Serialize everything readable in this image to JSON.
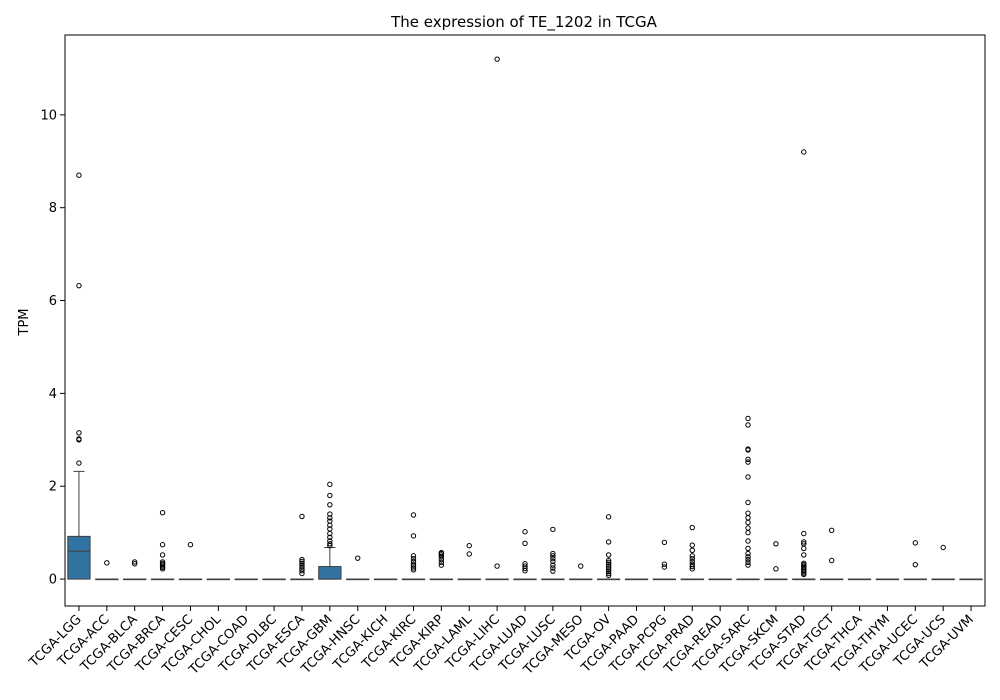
{
  "chart_data": {
    "type": "box",
    "title": "The expression of TE_1202 in TCGA",
    "xlabel": "",
    "ylabel": "TPM",
    "ylim": [
      -0.58,
      11.72
    ],
    "yticks": [
      0,
      2,
      4,
      6,
      8,
      10
    ],
    "grid": false,
    "box_color": "#3274a1",
    "categories": [
      "TCGA-LGG",
      "TCGA-ACC",
      "TCGA-BLCA",
      "TCGA-BRCA",
      "TCGA-CESC",
      "TCGA-CHOL",
      "TCGA-COAD",
      "TCGA-DLBC",
      "TCGA-ESCA",
      "TCGA-GBM",
      "TCGA-HNSC",
      "TCGA-KICH",
      "TCGA-KIRC",
      "TCGA-KIRP",
      "TCGA-LAML",
      "TCGA-LIHC",
      "TCGA-LUAD",
      "TCGA-LUSC",
      "TCGA-MESO",
      "TCGA-OV",
      "TCGA-PAAD",
      "TCGA-PCPG",
      "TCGA-PRAD",
      "TCGA-READ",
      "TCGA-SARC",
      "TCGA-SKCM",
      "TCGA-STAD",
      "TCGA-TGCT",
      "TCGA-THCA",
      "TCGA-THYM",
      "TCGA-UCEC",
      "TCGA-UCS",
      "TCGA-UVM"
    ],
    "boxes": [
      {
        "q1": 0,
        "median": 0.6,
        "q3": 0.92,
        "whisker_low": 0,
        "whisker_high": 2.32,
        "outliers": [
          2.5,
          3.0,
          3.02,
          3.15,
          6.32,
          8.7
        ]
      },
      {
        "q1": 0,
        "median": 0,
        "q3": 0,
        "whisker_low": 0,
        "whisker_high": 0,
        "outliers": [
          0.35
        ]
      },
      {
        "q1": 0,
        "median": 0,
        "q3": 0,
        "whisker_low": 0,
        "whisker_high": 0,
        "outliers": [
          0.33,
          0.37
        ]
      },
      {
        "q1": 0,
        "median": 0,
        "q3": 0,
        "whisker_low": 0,
        "whisker_high": 0,
        "outliers": [
          0.22,
          0.25,
          0.28,
          0.31,
          0.34,
          0.37,
          0.52,
          0.74,
          1.43
        ]
      },
      {
        "q1": 0,
        "median": 0,
        "q3": 0,
        "whisker_low": 0,
        "whisker_high": 0,
        "outliers": [
          0.74
        ]
      },
      {
        "q1": 0,
        "median": 0,
        "q3": 0,
        "whisker_low": 0,
        "whisker_high": 0,
        "outliers": []
      },
      {
        "q1": 0,
        "median": 0,
        "q3": 0,
        "whisker_low": 0,
        "whisker_high": 0,
        "outliers": []
      },
      {
        "q1": 0,
        "median": 0,
        "q3": 0,
        "whisker_low": 0,
        "whisker_high": 0,
        "outliers": []
      },
      {
        "q1": 0,
        "median": 0,
        "q3": 0,
        "whisker_low": 0,
        "whisker_high": 0,
        "outliers": [
          0.12,
          0.18,
          0.22,
          0.26,
          0.3,
          0.34,
          0.38,
          0.42,
          1.35
        ]
      },
      {
        "q1": 0,
        "median": 0,
        "q3": 0.27,
        "whisker_low": 0,
        "whisker_high": 0.68,
        "outliers": [
          0.72,
          0.76,
          0.82,
          0.9,
          0.98,
          1.08,
          1.16,
          1.25,
          1.32,
          1.4,
          1.6,
          1.8,
          2.04
        ]
      },
      {
        "q1": 0,
        "median": 0,
        "q3": 0,
        "whisker_low": 0,
        "whisker_high": 0,
        "outliers": [
          0.45
        ]
      },
      {
        "q1": 0,
        "median": 0,
        "q3": 0,
        "whisker_low": 0,
        "whisker_high": 0,
        "outliers": []
      },
      {
        "q1": 0,
        "median": 0,
        "q3": 0,
        "whisker_low": 0,
        "whisker_high": 0,
        "outliers": [
          0.2,
          0.24,
          0.28,
          0.32,
          0.38,
          0.44,
          0.5,
          0.93,
          1.38
        ]
      },
      {
        "q1": 0,
        "median": 0,
        "q3": 0,
        "whisker_low": 0,
        "whisker_high": 0,
        "outliers": [
          0.3,
          0.36,
          0.42,
          0.48,
          0.52,
          0.55,
          0.57
        ]
      },
      {
        "q1": 0,
        "median": 0,
        "q3": 0,
        "whisker_low": 0,
        "whisker_high": 0,
        "outliers": [
          0.54,
          0.72
        ]
      },
      {
        "q1": 0,
        "median": 0,
        "q3": 0,
        "whisker_low": 0,
        "whisker_high": 0,
        "outliers": [
          0.28,
          11.2
        ]
      },
      {
        "q1": 0,
        "median": 0,
        "q3": 0,
        "whisker_low": 0,
        "whisker_high": 0,
        "outliers": [
          0.18,
          0.23,
          0.28,
          0.33,
          0.77,
          1.02
        ]
      },
      {
        "q1": 0,
        "median": 0,
        "q3": 0,
        "whisker_low": 0,
        "whisker_high": 0,
        "outliers": [
          0.17,
          0.24,
          0.3,
          0.38,
          0.44,
          0.5,
          0.55,
          1.07
        ]
      },
      {
        "q1": 0,
        "median": 0,
        "q3": 0,
        "whisker_low": 0,
        "whisker_high": 0,
        "outliers": [
          0.28
        ]
      },
      {
        "q1": 0,
        "median": 0,
        "q3": 0,
        "whisker_low": 0,
        "whisker_high": 0,
        "outliers": [
          0.08,
          0.12,
          0.16,
          0.2,
          0.24,
          0.28,
          0.32,
          0.36,
          0.4,
          0.52,
          0.8,
          1.34
        ]
      },
      {
        "q1": 0,
        "median": 0,
        "q3": 0,
        "whisker_low": 0,
        "whisker_high": 0,
        "outliers": []
      },
      {
        "q1": 0,
        "median": 0,
        "q3": 0,
        "whisker_low": 0,
        "whisker_high": 0,
        "outliers": [
          0.26,
          0.32,
          0.79
        ]
      },
      {
        "q1": 0,
        "median": 0,
        "q3": 0,
        "whisker_low": 0,
        "whisker_high": 0,
        "outliers": [
          0.22,
          0.27,
          0.32,
          0.38,
          0.44,
          0.5,
          0.62,
          0.73,
          1.11
        ]
      },
      {
        "q1": 0,
        "median": 0,
        "q3": 0,
        "whisker_low": 0,
        "whisker_high": 0,
        "outliers": []
      },
      {
        "q1": 0,
        "median": 0,
        "q3": 0,
        "whisker_low": 0,
        "whisker_high": 0,
        "outliers": [
          0.3,
          0.36,
          0.42,
          0.48,
          0.55,
          0.66,
          0.82,
          1.0,
          1.1,
          1.22,
          1.32,
          1.42,
          1.65,
          2.2,
          2.52,
          2.58,
          2.78,
          2.8,
          3.32,
          3.46
        ]
      },
      {
        "q1": 0,
        "median": 0,
        "q3": 0,
        "whisker_low": 0,
        "whisker_high": 0,
        "outliers": [
          0.22,
          0.76
        ]
      },
      {
        "q1": 0,
        "median": 0,
        "q3": 0,
        "whisker_low": 0,
        "whisker_high": 0,
        "outliers": [
          0.1,
          0.13,
          0.16,
          0.19,
          0.22,
          0.25,
          0.28,
          0.31,
          0.34,
          0.52,
          0.66,
          0.76,
          0.8,
          0.98,
          9.2
        ]
      },
      {
        "q1": 0,
        "median": 0,
        "q3": 0,
        "whisker_low": 0,
        "whisker_high": 0,
        "outliers": [
          0.4,
          1.05
        ]
      },
      {
        "q1": 0,
        "median": 0,
        "q3": 0,
        "whisker_low": 0,
        "whisker_high": 0,
        "outliers": []
      },
      {
        "q1": 0,
        "median": 0,
        "q3": 0,
        "whisker_low": 0,
        "whisker_high": 0,
        "outliers": []
      },
      {
        "q1": 0,
        "median": 0,
        "q3": 0,
        "whisker_low": 0,
        "whisker_high": 0,
        "outliers": [
          0.31,
          0.78
        ]
      },
      {
        "q1": 0,
        "median": 0,
        "q3": 0,
        "whisker_low": 0,
        "whisker_high": 0,
        "outliers": [
          0.68
        ]
      },
      {
        "q1": 0,
        "median": 0,
        "q3": 0,
        "whisker_low": 0,
        "whisker_high": 0,
        "outliers": []
      }
    ]
  }
}
